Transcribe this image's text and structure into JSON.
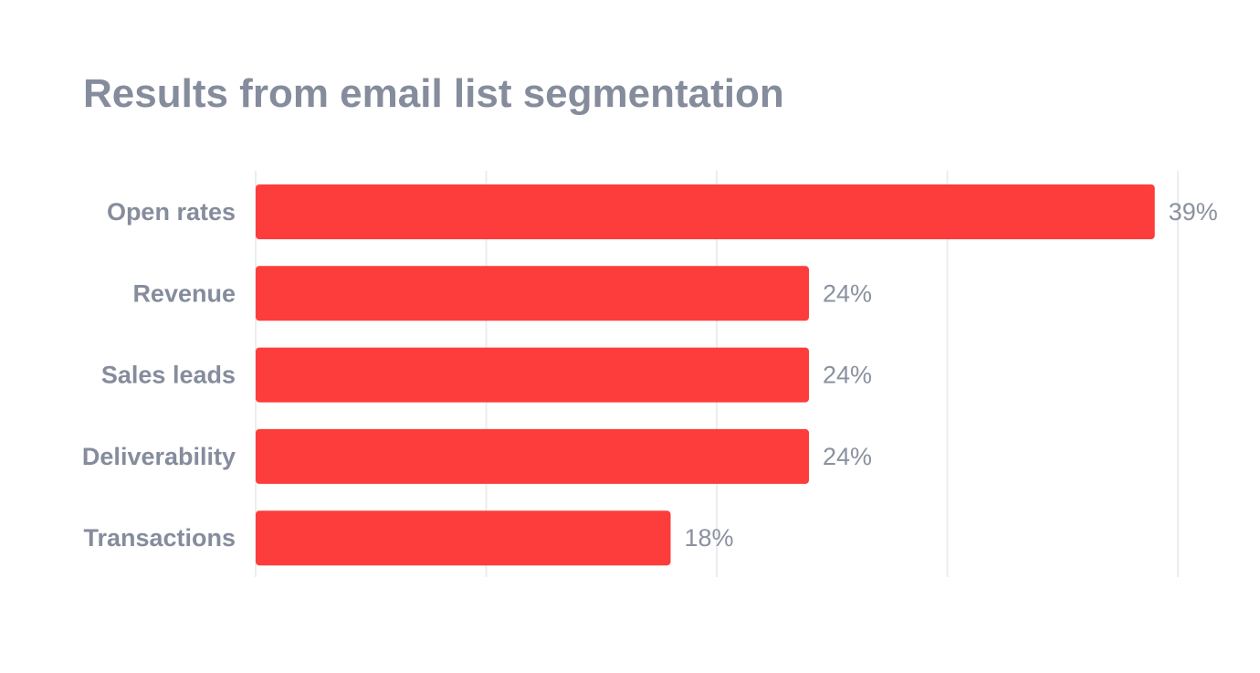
{
  "chart_data": {
    "type": "bar",
    "orientation": "horizontal",
    "title": "Results from email list segmentation",
    "categories": [
      "Open rates",
      "Revenue",
      "Sales leads",
      "Deliverability",
      "Transactions"
    ],
    "values": [
      39,
      24,
      24,
      24,
      18
    ],
    "value_labels": [
      "39%",
      "24%",
      "24%",
      "24%",
      "18%"
    ],
    "xlim": [
      0,
      40
    ],
    "grid": true,
    "legend": "none",
    "colors": {
      "bar": "#fc3d3b",
      "grid": "#ecedf0",
      "text": "#858c9c"
    }
  }
}
